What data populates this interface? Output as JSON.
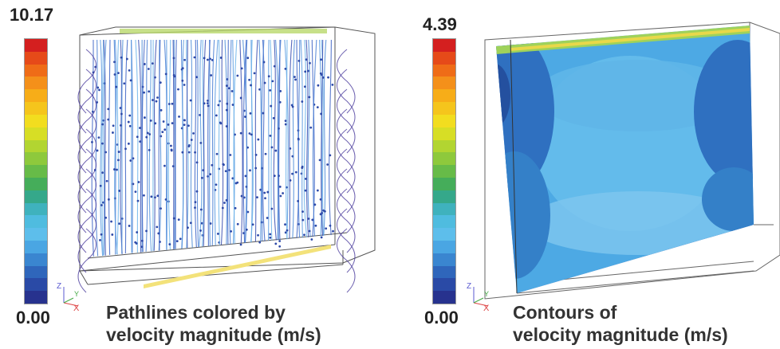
{
  "colormap": [
    "#d41f1f",
    "#e64a19",
    "#ef6c17",
    "#f4901a",
    "#f7ad18",
    "#f5c51c",
    "#f2dd1f",
    "#d7de25",
    "#b2d531",
    "#8ec93c",
    "#67bb48",
    "#45ad5a",
    "#35a88a",
    "#3fb2bd",
    "#4fbcdf",
    "#5dbeeb",
    "#4aa6e3",
    "#3a86d0",
    "#2f66bb",
    "#2a4aa6",
    "#27328e"
  ],
  "left": {
    "scale_max": "10.17",
    "scale_min": "0.00",
    "caption_line1": "Pathlines colored by",
    "caption_line2": "velocity magnitude (m/s)",
    "axis_z": "Z",
    "axis_y": "Y",
    "axis_x": "X"
  },
  "right": {
    "scale_max": "4.39",
    "scale_min": "0.00",
    "caption_line1": "Contours of",
    "caption_line2": "velocity magnitude (m/s)",
    "axis_z": "Z",
    "axis_y": "Y",
    "axis_x": "X"
  }
}
